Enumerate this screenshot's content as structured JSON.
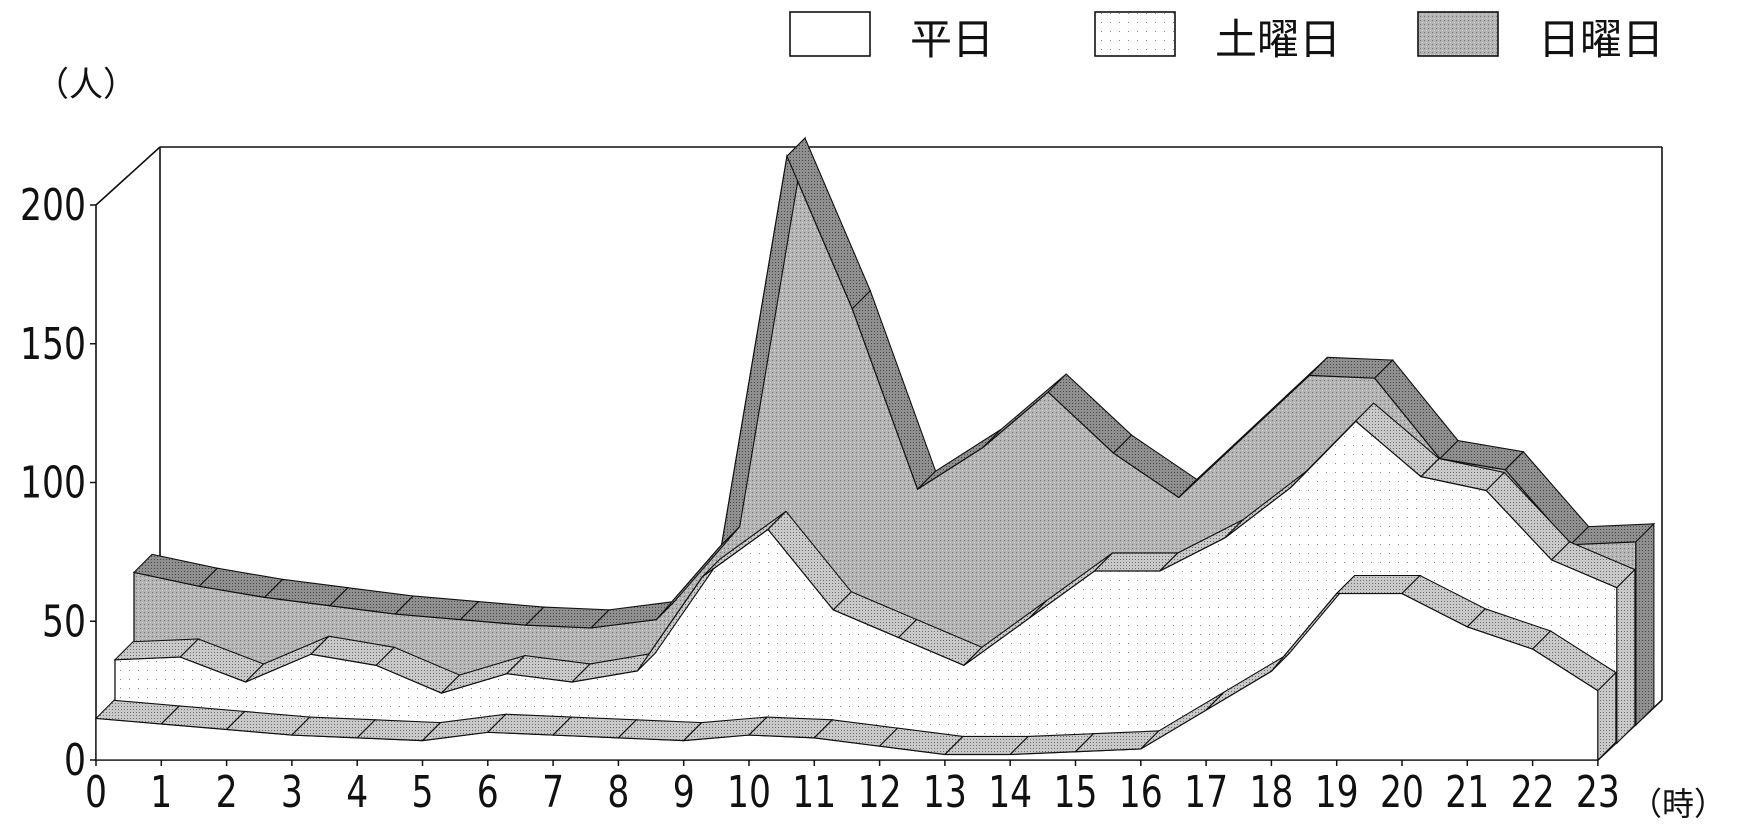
{
  "chart_data": {
    "type": "area",
    "ylabel": "（人）",
    "xlabel": "（時）",
    "x": [
      0,
      1,
      2,
      3,
      4,
      5,
      6,
      7,
      8,
      9,
      10,
      11,
      12,
      13,
      14,
      15,
      16,
      17,
      18,
      19,
      20,
      21,
      22,
      23
    ],
    "ylim": [
      0,
      200
    ],
    "yticks": [
      0,
      50,
      100,
      150,
      200
    ],
    "legend_position": "top-right",
    "grid": false,
    "series": [
      {
        "name": "平日",
        "color": "#ffffff",
        "values": [
          15,
          13,
          11,
          9,
          8,
          7,
          10,
          9,
          8,
          7,
          9,
          8,
          5,
          2,
          2,
          3,
          4,
          18,
          32,
          60,
          60,
          48,
          40,
          25
        ]
      },
      {
        "name": "土曜日",
        "color": "#f4f4f4",
        "values": [
          30,
          31,
          22,
          32,
          28,
          18,
          25,
          22,
          26,
          60,
          77,
          48,
          38,
          28,
          45,
          62,
          62,
          74,
          92,
          116,
          96,
          91,
          66,
          56
        ]
      },
      {
        "name": "日曜日",
        "color": "#b8b8b8",
        "values": [
          55,
          50,
          46,
          43,
          40,
          38,
          36,
          35,
          38,
          65,
          205,
          150,
          85,
          100,
          120,
          98,
          82,
          104,
          126,
          125,
          96,
          92,
          65,
          66
        ]
      }
    ]
  }
}
